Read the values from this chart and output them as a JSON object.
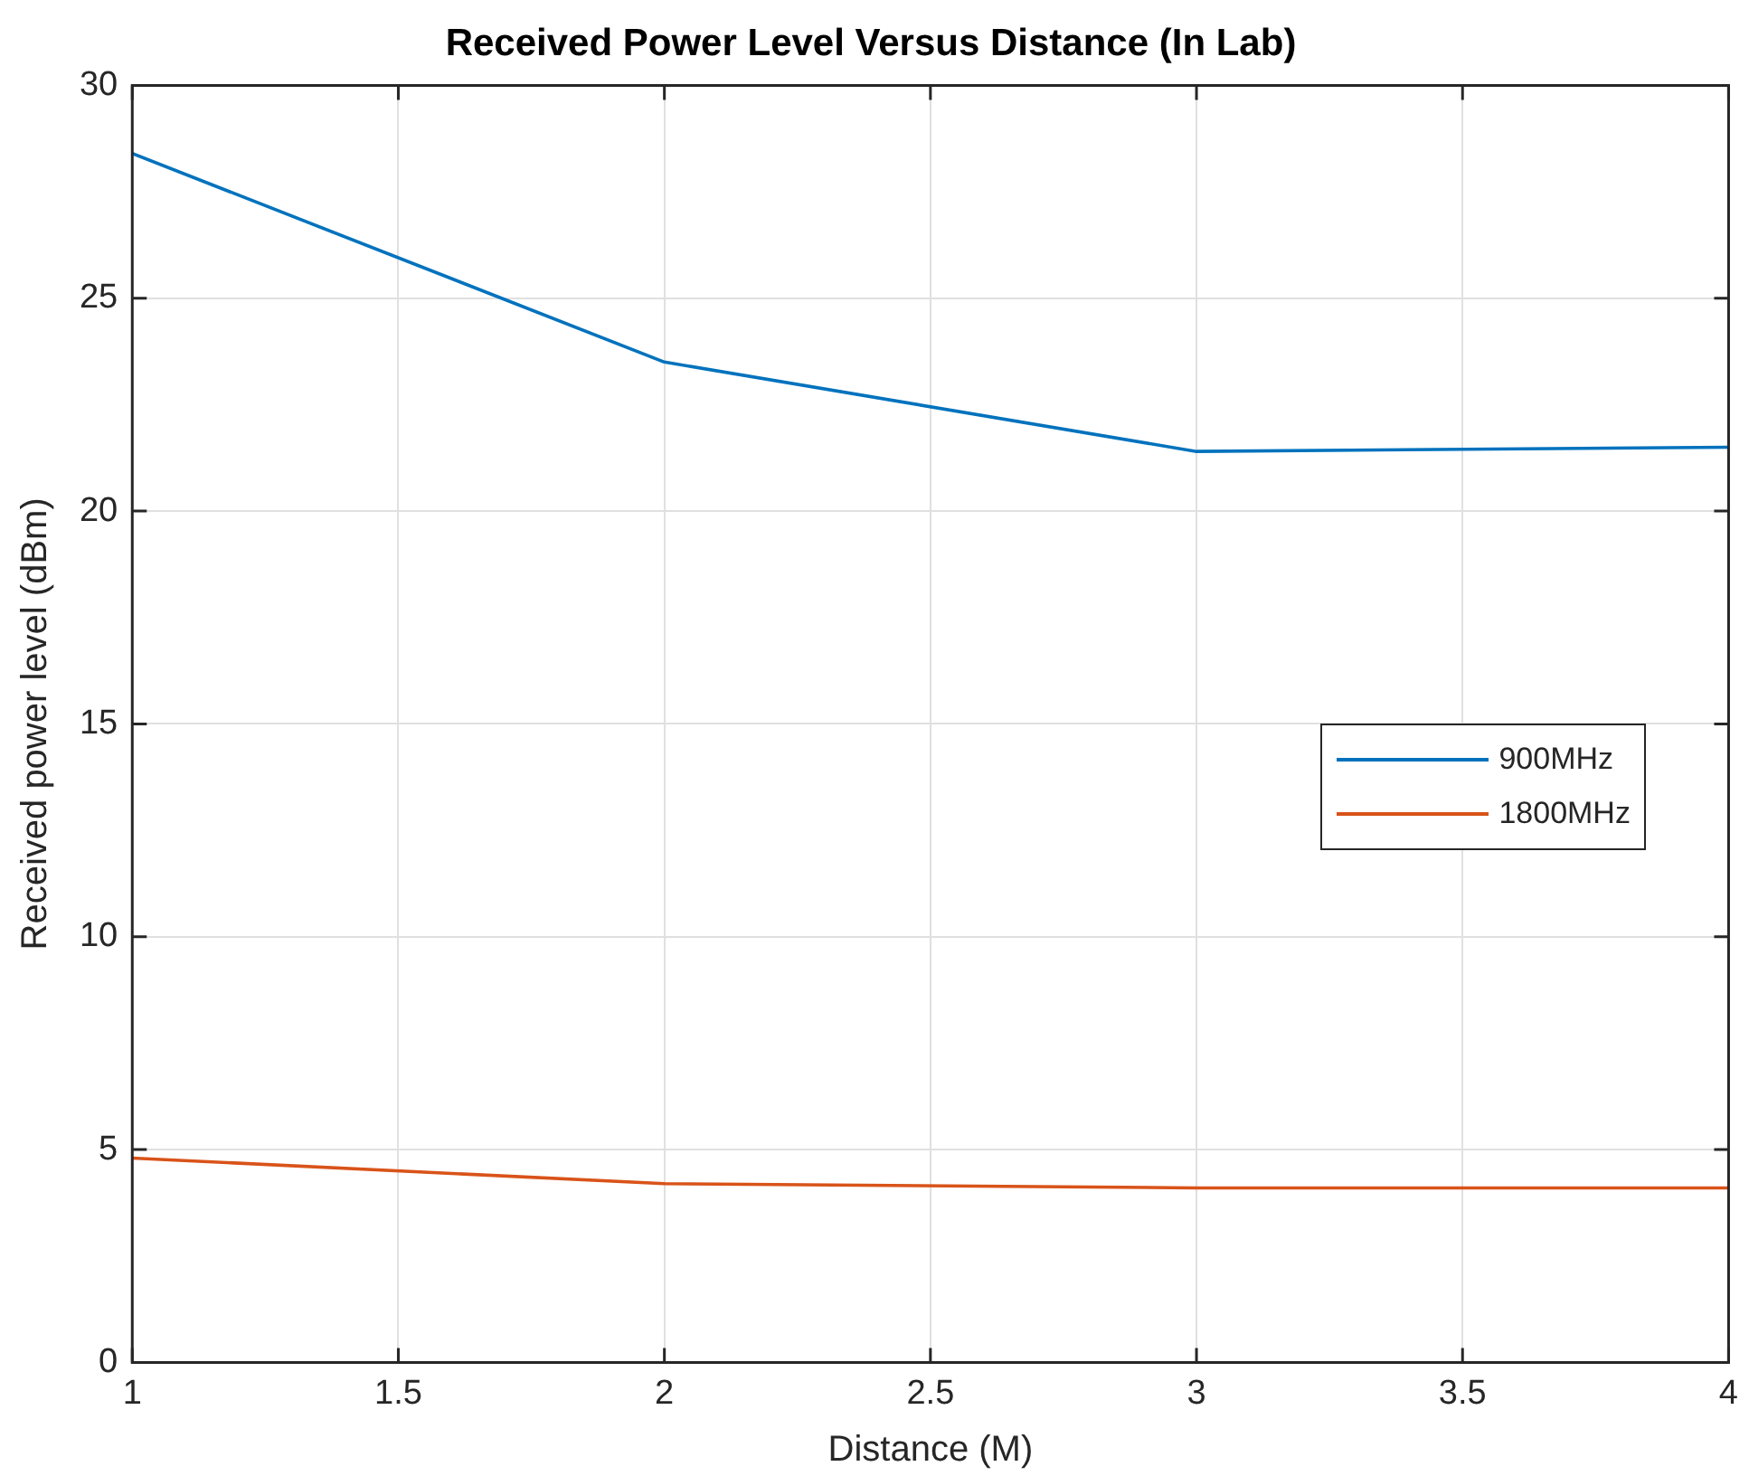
{
  "chart_data": {
    "type": "line",
    "title": "Received Power Level Versus Distance (In Lab)",
    "xlabel": "Distance (M)",
    "ylabel": "Received power level (dBm)",
    "x": [
      1,
      2,
      3,
      4
    ],
    "series": [
      {
        "name": "900MHz",
        "color": "#0072bd",
        "values": [
          28.4,
          23.5,
          21.4,
          21.5
        ]
      },
      {
        "name": "1800MHz",
        "color": "#d95319",
        "values": [
          4.8,
          4.2,
          4.1,
          4.1
        ]
      }
    ],
    "xlim": [
      1,
      4
    ],
    "xticks": [
      1,
      1.5,
      2,
      2.5,
      3,
      3.5,
      4
    ],
    "ylim": [
      0,
      30
    ],
    "yticks": [
      0,
      5,
      10,
      15,
      20,
      25,
      30
    ],
    "grid": true,
    "legend": "right",
    "marker": "none",
    "line_style": "solid"
  }
}
